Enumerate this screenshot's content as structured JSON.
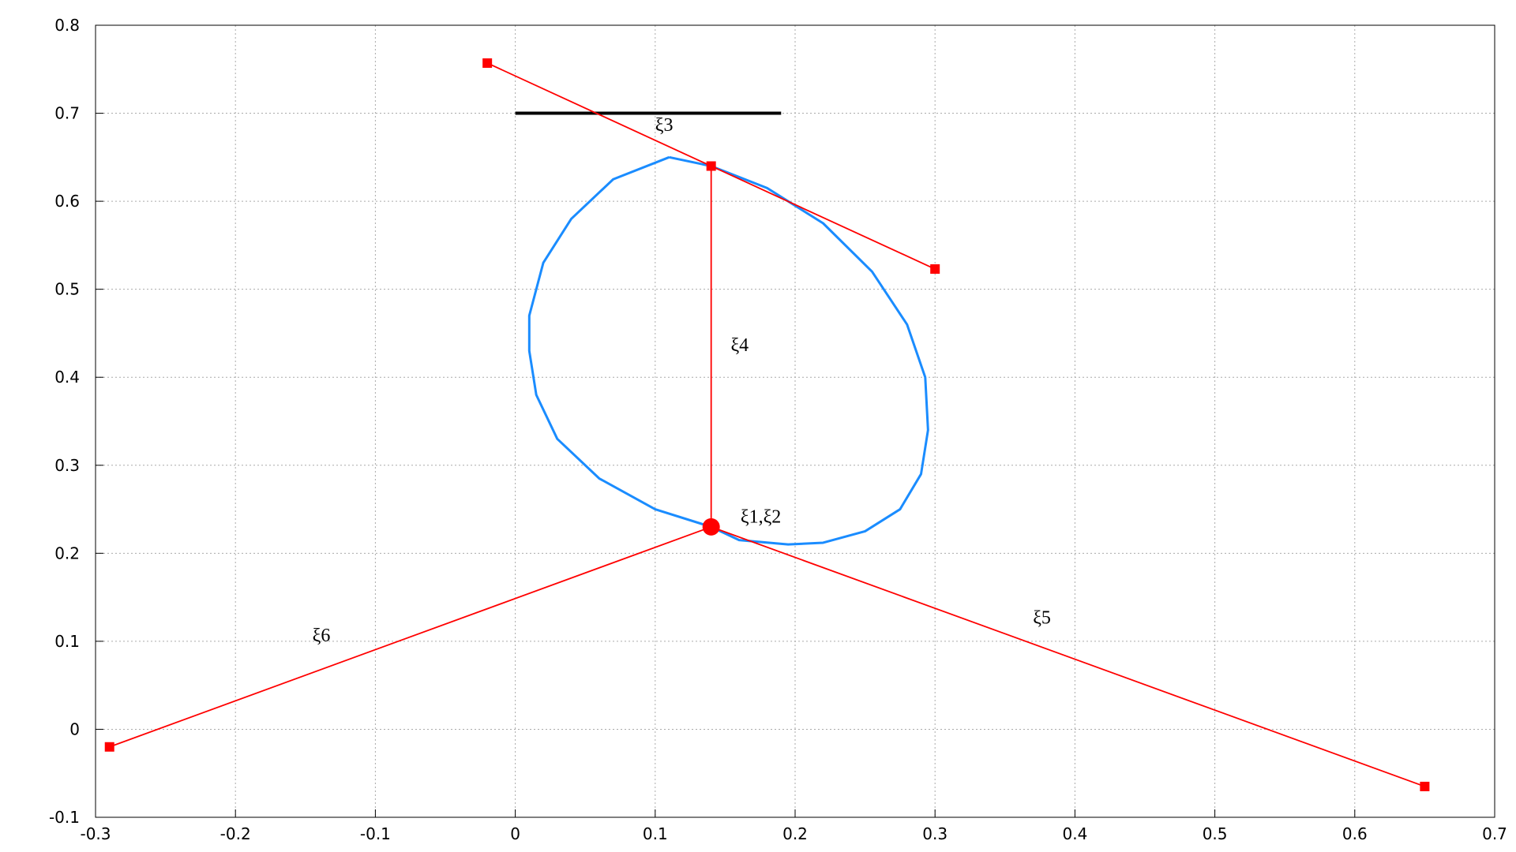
{
  "chart_data": {
    "type": "line",
    "xlim": [
      -0.3,
      0.7
    ],
    "ylim": [
      -0.1,
      0.8
    ],
    "xticks": [
      -0.3,
      -0.2,
      -0.1,
      0,
      0.1,
      0.2,
      0.3,
      0.4,
      0.5,
      0.6,
      0.7
    ],
    "yticks": [
      -0.1,
      0,
      0.1,
      0.2,
      0.3,
      0.4,
      0.5,
      0.6,
      0.7,
      0.8
    ],
    "grid": true,
    "series": [
      {
        "color": "#1a8cff",
        "marker": "none",
        "x": [
          0.11,
          0.14,
          0.18,
          0.22,
          0.255,
          0.28,
          0.293,
          0.295,
          0.29,
          0.275,
          0.25,
          0.22,
          0.195,
          0.16,
          0.14,
          0.1,
          0.06,
          0.03,
          0.015,
          0.01,
          0.01,
          0.02,
          0.04,
          0.07,
          0.11
        ],
        "values": [
          0.65,
          0.64,
          0.615,
          0.575,
          0.52,
          0.46,
          0.4,
          0.34,
          0.29,
          0.25,
          0.225,
          0.212,
          0.21,
          0.215,
          0.23,
          0.25,
          0.285,
          0.33,
          0.38,
          0.43,
          0.47,
          0.53,
          0.58,
          0.625,
          0.65
        ]
      },
      {
        "color": "#000000",
        "marker": "none",
        "x": [
          0,
          0.19
        ],
        "values": [
          0.7,
          0.7
        ]
      },
      {
        "color": "#ff0000",
        "marker": "square",
        "x": [
          -0.02,
          0.14,
          0.3
        ],
        "values": [
          0.757,
          0.64,
          0.523
        ]
      },
      {
        "color": "#ff0000",
        "marker": "none",
        "x": [
          0.14,
          0.14
        ],
        "values": [
          0.64,
          0.23
        ]
      },
      {
        "color": "#ff0000",
        "marker": "square",
        "x": [
          0.14,
          0.65
        ],
        "values": [
          0.23,
          -0.065
        ]
      },
      {
        "color": "#ff0000",
        "marker": "square",
        "x": [
          0.14,
          -0.29
        ],
        "values": [
          0.23,
          -0.02
        ]
      },
      {
        "color": "#ff0000",
        "marker": "circle",
        "x": [
          0.14
        ],
        "values": [
          0.23
        ]
      }
    ],
    "annotations": [
      {
        "text": "ξ1,ξ2",
        "x": 0.161,
        "y": 0.235
      },
      {
        "text": "ξ3",
        "x": 0.1,
        "y": 0.68
      },
      {
        "text": "ξ4",
        "x": 0.154,
        "y": 0.43
      },
      {
        "text": "ξ5",
        "x": 0.37,
        "y": 0.12
      },
      {
        "text": "ξ6",
        "x": -0.145,
        "y": 0.1
      }
    ]
  }
}
